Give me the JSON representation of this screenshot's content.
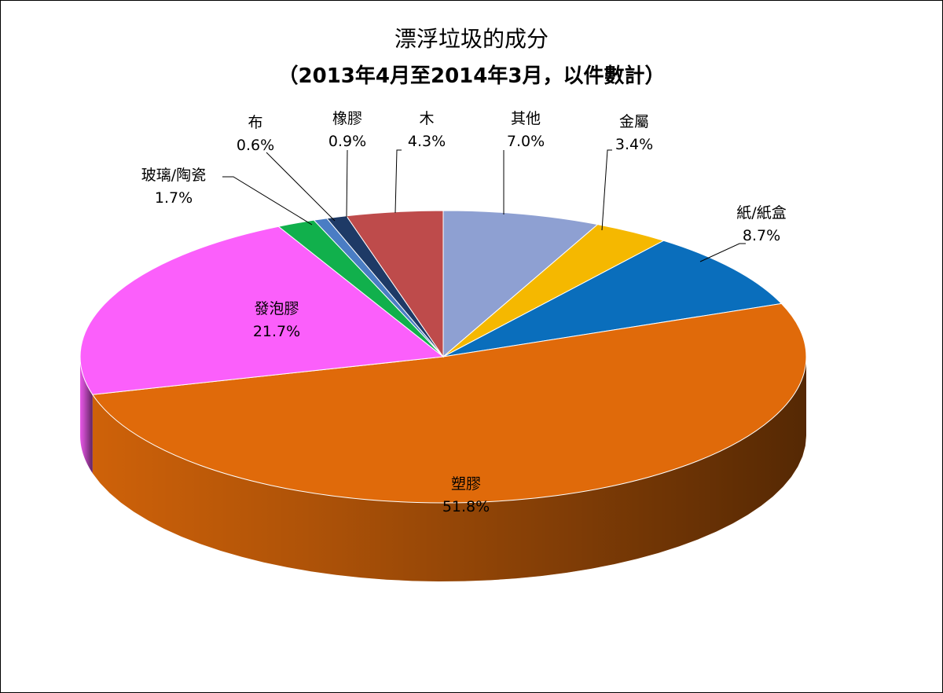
{
  "chart_data": {
    "type": "pie",
    "style": "3d",
    "title": "漂浮垃圾的成分",
    "subtitle": "（2013年4月至2014年3月，以件數計）",
    "start_angle_deg": 90,
    "direction": "clockwise",
    "slices": [
      {
        "label": "其他",
        "value": 7.0,
        "value_label": "7.0%",
        "color": "#8EA0D2"
      },
      {
        "label": "金屬",
        "value": 3.4,
        "value_label": "3.4%",
        "color": "#F5B800"
      },
      {
        "label": "紙/紙盒",
        "value": 8.7,
        "value_label": "8.7%",
        "color": "#0A6EBC"
      },
      {
        "label": "塑膠",
        "value": 51.8,
        "value_label": "51.8%",
        "color": "#E06A0A"
      },
      {
        "label": "發泡膠",
        "value": 21.7,
        "value_label": "21.7%",
        "color": "#FB5FFB"
      },
      {
        "label": "玻璃/陶瓷",
        "value": 1.7,
        "value_label": "1.7%",
        "color": "#11B04C"
      },
      {
        "label": "布",
        "value": 0.6,
        "value_label": "0.6%",
        "color": "#4A7DC4"
      },
      {
        "label": "橡膠",
        "value": 0.9,
        "value_label": "0.9%",
        "color": "#1E3A66"
      },
      {
        "label": "木",
        "value": 4.3,
        "value_label": "4.3%",
        "color": "#BE4B4B"
      }
    ]
  }
}
